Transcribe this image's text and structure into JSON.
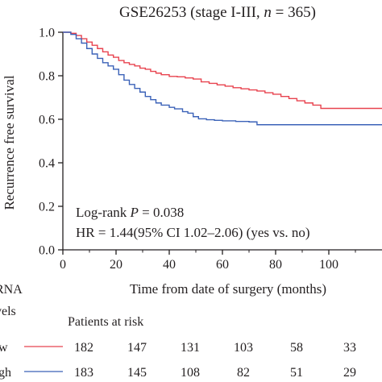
{
  "chart_data": {
    "type": "line",
    "title_prefix": "GSE26253 (stage I-III, ",
    "title_n_symbol": "n",
    "title_n_value": " = 365)",
    "xlabel": "Time from date of surgery (months)",
    "ylabel": "Recurrence free survival",
    "xlim": [
      0,
      120
    ],
    "ylim": [
      0.0,
      1.0
    ],
    "x_ticks": [
      "0",
      "20",
      "40",
      "60",
      "80",
      "100"
    ],
    "y_ticks": [
      "0.0",
      "0.2",
      "0.4",
      "0.6",
      "0.8",
      "1.0"
    ],
    "grid": false,
    "series": [
      {
        "name": "Low",
        "color": "#e8434f",
        "points": [
          [
            0,
            1.0
          ],
          [
            3,
            0.995
          ],
          [
            5,
            0.985
          ],
          [
            7,
            0.97
          ],
          [
            9,
            0.955
          ],
          [
            11,
            0.94
          ],
          [
            13,
            0.925
          ],
          [
            15,
            0.91
          ],
          [
            17,
            0.895
          ],
          [
            19,
            0.885
          ],
          [
            21,
            0.87
          ],
          [
            23,
            0.86
          ],
          [
            25,
            0.852
          ],
          [
            27,
            0.845
          ],
          [
            29,
            0.835
          ],
          [
            31,
            0.83
          ],
          [
            33,
            0.82
          ],
          [
            35,
            0.812
          ],
          [
            37,
            0.805
          ],
          [
            40,
            0.797
          ],
          [
            43,
            0.795
          ],
          [
            46,
            0.79
          ],
          [
            49,
            0.785
          ],
          [
            52,
            0.772
          ],
          [
            55,
            0.765
          ],
          [
            58,
            0.758
          ],
          [
            61,
            0.752
          ],
          [
            64,
            0.745
          ],
          [
            67,
            0.74
          ],
          [
            70,
            0.735
          ],
          [
            73,
            0.73
          ],
          [
            76,
            0.722
          ],
          [
            79,
            0.715
          ],
          [
            82,
            0.705
          ],
          [
            85,
            0.695
          ],
          [
            88,
            0.685
          ],
          [
            91,
            0.675
          ],
          [
            94,
            0.665
          ],
          [
            97,
            0.65
          ],
          [
            120,
            0.65
          ]
        ]
      },
      {
        "name": "High",
        "color": "#3b62b8",
        "points": [
          [
            0,
            1.0
          ],
          [
            3,
            0.99
          ],
          [
            5,
            0.97
          ],
          [
            7,
            0.95
          ],
          [
            9,
            0.925
          ],
          [
            11,
            0.9
          ],
          [
            13,
            0.88
          ],
          [
            15,
            0.86
          ],
          [
            17,
            0.845
          ],
          [
            19,
            0.83
          ],
          [
            21,
            0.805
          ],
          [
            23,
            0.78
          ],
          [
            25,
            0.76
          ],
          [
            27,
            0.742
          ],
          [
            29,
            0.725
          ],
          [
            31,
            0.705
          ],
          [
            33,
            0.69
          ],
          [
            35,
            0.675
          ],
          [
            37,
            0.665
          ],
          [
            40,
            0.655
          ],
          [
            42,
            0.648
          ],
          [
            45,
            0.635
          ],
          [
            47,
            0.628
          ],
          [
            49,
            0.612
          ],
          [
            51,
            0.602
          ],
          [
            54,
            0.598
          ],
          [
            57,
            0.595
          ],
          [
            60,
            0.593
          ],
          [
            65,
            0.59
          ],
          [
            70,
            0.588
          ],
          [
            73,
            0.575
          ],
          [
            120,
            0.575
          ]
        ]
      }
    ],
    "annotations": {
      "logrank_prefix": "Log-rank ",
      "logrank_symbol": "P",
      "logrank_value": " = 0.038",
      "hr": "HR = 1.44(95% CI 1.02–2.06) (yes vs. no)"
    },
    "risk_table": {
      "group_header_line1": "RNA",
      "group_header_line2": "vels",
      "title": "Patients at risk",
      "rows": [
        {
          "label": "w",
          "color": "#e8434f",
          "values": [
            "182",
            "147",
            "131",
            "103",
            "58",
            "33"
          ]
        },
        {
          "label": "gh",
          "color": "#3b62b8",
          "values": [
            "183",
            "145",
            "108",
            "82",
            "51",
            "29"
          ]
        }
      ]
    }
  }
}
